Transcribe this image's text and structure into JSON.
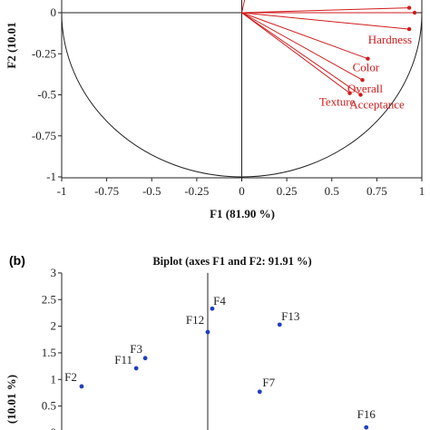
{
  "panel_b": {
    "label": "(b)",
    "title": "Biplot (axes F1 and F2: 91.91 %)"
  },
  "chart_data": [
    {
      "type": "scatter",
      "subtype": "correlation-circle",
      "xlabel": "F1 (81.90 %)",
      "ylabel": "F2 (10.01",
      "xlim": [
        -1,
        1
      ],
      "ylim": [
        -1,
        0
      ],
      "xticks": [
        "-1",
        "-0.75",
        "-0.5",
        "-0.25",
        "0",
        "0.25",
        "0.5",
        "0.75",
        "1"
      ],
      "yticks": [
        "0",
        "-0.25",
        "-0.5",
        "-0.75",
        "-1"
      ],
      "circle": true,
      "line_color": "#d11b1b",
      "vectors": [
        {
          "label": "",
          "x": 0.02,
          "y": 0.1
        },
        {
          "label": "",
          "x": 0.93,
          "y": 0.03
        },
        {
          "label": "",
          "x": 0.96,
          "y": 0.0
        },
        {
          "label": "Hardness",
          "x": 0.93,
          "y": -0.1
        },
        {
          "label": "Color",
          "x": 0.7,
          "y": -0.28
        },
        {
          "label": "Overall",
          "x": 0.67,
          "y": -0.41
        },
        {
          "label": "Texture",
          "x": 0.6,
          "y": -0.49
        },
        {
          "label": "Acceptance",
          "x": 0.66,
          "y": -0.5
        }
      ]
    },
    {
      "type": "scatter",
      "title": "Biplot (axes F1 and F2: 91.91 %)",
      "ylabel": "(10.01 %)",
      "ylim": [
        0,
        3
      ],
      "yticks": [
        "3",
        "2.5",
        "2",
        "1.5",
        "1",
        "0.5",
        "0"
      ],
      "point_color": "#1f3fbf",
      "points": [
        {
          "label": "F4",
          "x": 0.12,
          "y": 2.33
        },
        {
          "label": "F12",
          "x": 0.0,
          "y": 1.89
        },
        {
          "label": "F13",
          "x": 1.91,
          "y": 2.03
        },
        {
          "label": "F3",
          "x": -1.66,
          "y": 1.4
        },
        {
          "label": "F11",
          "x": -1.9,
          "y": 1.21
        },
        {
          "label": "F2",
          "x": -3.35,
          "y": 0.87
        },
        {
          "label": "F7",
          "x": 1.38,
          "y": 0.77
        },
        {
          "label": "F16",
          "x": 4.21,
          "y": 0.1
        }
      ]
    }
  ]
}
